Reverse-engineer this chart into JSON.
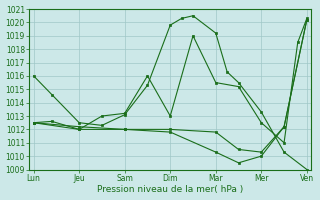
{
  "xlabel": "Pression niveau de la mer( hPa )",
  "background_color": "#cce8e8",
  "grid_color": "#a0c8c8",
  "line_color": "#1a6e1a",
  "ylim": [
    1009,
    1021
  ],
  "yticks": [
    1009,
    1010,
    1011,
    1012,
    1013,
    1014,
    1015,
    1016,
    1017,
    1018,
    1019,
    1020,
    1021
  ],
  "x_labels": [
    "Lun",
    "Jeu",
    "Sam",
    "Dim",
    "Mar",
    "Mer",
    "Ven"
  ],
  "x_positions": [
    0,
    1,
    2,
    3,
    4,
    5,
    6
  ],
  "xlim": [
    -0.1,
    6.1
  ],
  "series": [
    {
      "x": [
        0,
        0.4,
        1.0,
        1.5,
        2.0,
        2.5,
        3.0,
        3.25,
        3.5,
        4.0,
        4.25,
        4.5,
        5.0,
        5.5,
        6.0
      ],
      "y": [
        1016.0,
        1014.6,
        1012.5,
        1012.3,
        1013.1,
        1015.3,
        1019.8,
        1020.3,
        1020.5,
        1019.2,
        1016.3,
        1015.5,
        1013.3,
        1010.3,
        1009.0
      ]
    },
    {
      "x": [
        0,
        0.4,
        1.0,
        1.5,
        2.0,
        2.5,
        3.0,
        3.5,
        4.0,
        4.5,
        5.0,
        5.5,
        5.8,
        6.0
      ],
      "y": [
        1012.5,
        1012.6,
        1012.0,
        1013.0,
        1013.2,
        1016.0,
        1013.0,
        1019.0,
        1015.5,
        1015.2,
        1012.5,
        1011.0,
        1018.5,
        1020.3
      ]
    },
    {
      "x": [
        0,
        1.0,
        2.0,
        3.0,
        4.0,
        4.5,
        5.0,
        5.5,
        6.0
      ],
      "y": [
        1012.5,
        1012.2,
        1012.0,
        1012.0,
        1011.8,
        1010.5,
        1010.3,
        1012.2,
        1020.2
      ]
    },
    {
      "x": [
        0,
        1.0,
        2.0,
        3.0,
        4.0,
        4.5,
        5.0,
        5.5,
        6.0
      ],
      "y": [
        1012.5,
        1012.0,
        1012.0,
        1011.8,
        1010.3,
        1009.5,
        1010.0,
        1012.2,
        1020.2
      ]
    }
  ]
}
